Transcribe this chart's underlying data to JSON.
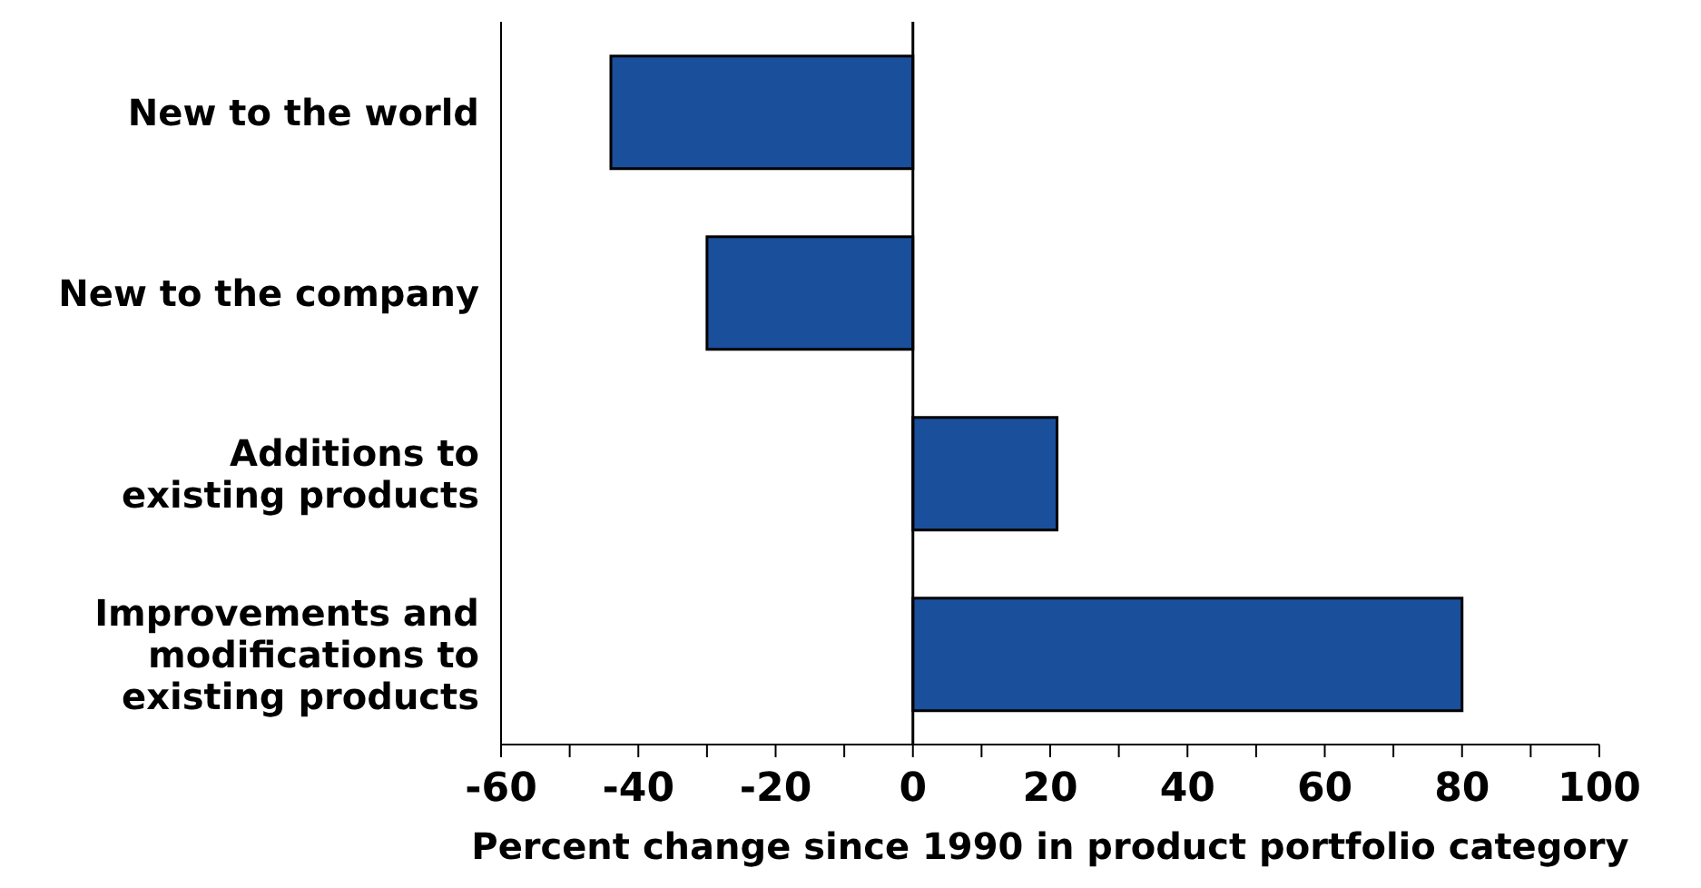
{
  "chart_data": {
    "type": "bar",
    "orientation": "horizontal",
    "xlabel": "Percent change since 1990 in product portfolio category",
    "categories": [
      "New to the world",
      "New to the company",
      "Additions to existing products",
      "Improvements and modifications to existing products"
    ],
    "values": [
      -44,
      -30,
      21,
      80
    ],
    "color": "#1a4f9c",
    "xlim": [
      -60,
      100
    ],
    "xticks": [
      -60,
      {
        "value": -50,
        "label": null
      },
      -40,
      {
        "value": -30,
        "label": null
      },
      -20,
      {
        "value": -10,
        "label": null
      },
      0,
      {
        "value": 10,
        "label": null
      },
      20,
      {
        "value": 30,
        "label": null
      },
      40,
      {
        "value": 50,
        "label": null
      },
      60,
      {
        "value": 70,
        "label": null
      },
      80,
      {
        "value": 90,
        "label": null
      },
      100
    ],
    "ref_lines": [
      {
        "axis": "x",
        "value": 0,
        "label": null,
        "color": "#000000"
      }
    ],
    "grid": false,
    "legend": false
  }
}
